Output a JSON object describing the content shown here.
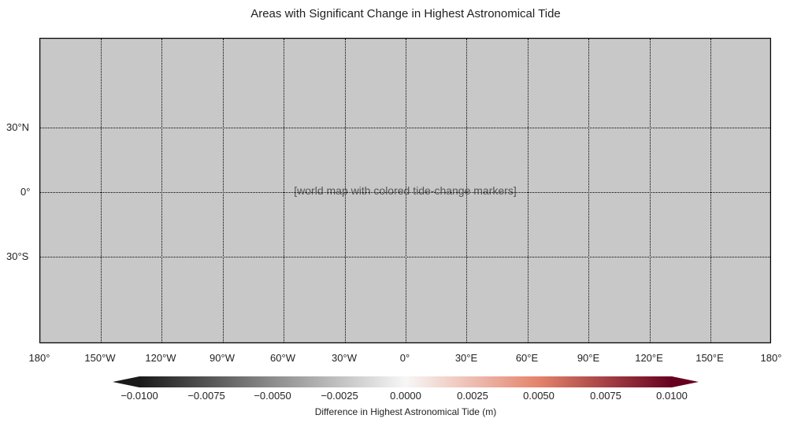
{
  "title": "Areas with Significant Change in Highest Astronomical Tide",
  "map": {
    "placeholder_label": "[world map with colored tide-change markers]",
    "lat_labels": [
      "30°N",
      "0°",
      "30°S"
    ],
    "lon_labels": [
      "180°",
      "150°W",
      "120°W",
      "90°W",
      "60°W",
      "30°W",
      "0°",
      "30°E",
      "60°E",
      "90°E",
      "120°E",
      "150°E",
      "180°"
    ]
  },
  "colorbar": {
    "ticks": [
      "−0.0100",
      "−0.0075",
      "−0.0050",
      "−0.0025",
      "0.0000",
      "0.0025",
      "0.0050",
      "0.0075",
      "0.0100"
    ],
    "label": "Difference in Highest Astronomical Tide (m)",
    "low_color": "#1a1a1a",
    "mid_color": "#f7f7f7",
    "high_color": "#67001f"
  }
}
